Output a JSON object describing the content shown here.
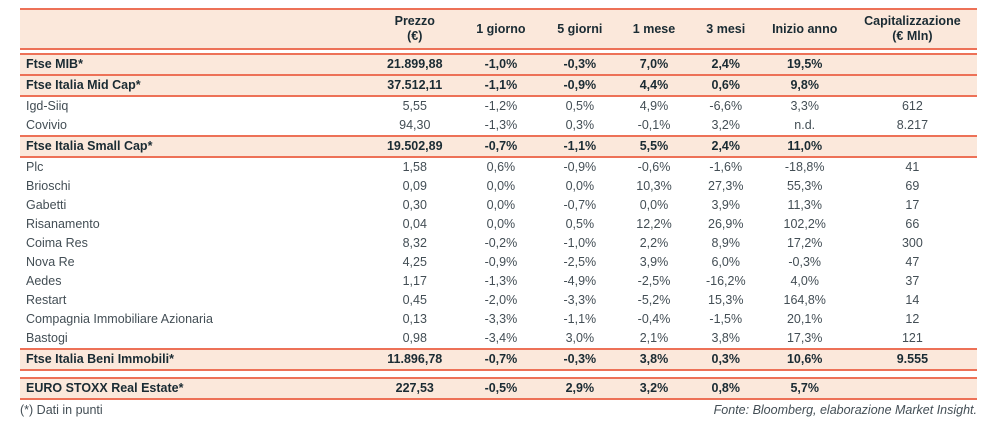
{
  "chart_data": {
    "type": "table",
    "columns": [
      "",
      "Prezzo\n(€)",
      "1 giorno",
      "5 giorni",
      "1 mese",
      "3 mesi",
      "Inizio anno",
      "Capitalizzazione\n(€ Mln)"
    ],
    "rows": [
      {
        "type": "index",
        "name": "Ftse MIB*",
        "cells": [
          "21.899,88",
          "-1,0%",
          "-0,3%",
          "7,0%",
          "2,4%",
          "19,5%",
          ""
        ]
      },
      {
        "type": "index",
        "name": "Ftse Italia Mid Cap*",
        "cells": [
          "37.512,11",
          "-1,1%",
          "-0,9%",
          "4,4%",
          "0,6%",
          "9,8%",
          ""
        ]
      },
      {
        "type": "stock",
        "name": "Igd-Siiq",
        "cells": [
          "5,55",
          "-1,2%",
          "0,5%",
          "4,9%",
          "-6,6%",
          "3,3%",
          "612"
        ]
      },
      {
        "type": "stock",
        "name": "Covivio",
        "cells": [
          "94,30",
          "-1,3%",
          "0,3%",
          "-0,1%",
          "3,2%",
          "n.d.",
          "8.217"
        ]
      },
      {
        "type": "index",
        "name": "Ftse Italia Small Cap*",
        "cells": [
          "19.502,89",
          "-0,7%",
          "-1,1%",
          "5,5%",
          "2,4%",
          "11,0%",
          ""
        ]
      },
      {
        "type": "stock",
        "name": "Plc",
        "cells": [
          "1,58",
          "0,6%",
          "-0,9%",
          "-0,6%",
          "-1,6%",
          "-18,8%",
          "41"
        ]
      },
      {
        "type": "stock",
        "name": "Brioschi",
        "cells": [
          "0,09",
          "0,0%",
          "0,0%",
          "10,3%",
          "27,3%",
          "55,3%",
          "69"
        ]
      },
      {
        "type": "stock",
        "name": "Gabetti",
        "cells": [
          "0,30",
          "0,0%",
          "-0,7%",
          "0,0%",
          "3,9%",
          "11,3%",
          "17"
        ]
      },
      {
        "type": "stock",
        "name": "Risanamento",
        "cells": [
          "0,04",
          "0,0%",
          "0,5%",
          "12,2%",
          "26,9%",
          "102,2%",
          "66"
        ]
      },
      {
        "type": "stock",
        "name": "Coima Res",
        "cells": [
          "8,32",
          "-0,2%",
          "-1,0%",
          "2,2%",
          "8,9%",
          "17,2%",
          "300"
        ]
      },
      {
        "type": "stock",
        "name": "Nova Re",
        "cells": [
          "4,25",
          "-0,9%",
          "-2,5%",
          "3,9%",
          "6,0%",
          "-0,3%",
          "47"
        ]
      },
      {
        "type": "stock",
        "name": "Aedes",
        "cells": [
          "1,17",
          "-1,3%",
          "-4,9%",
          "-2,5%",
          "-16,2%",
          "4,0%",
          "37"
        ]
      },
      {
        "type": "stock",
        "name": "Restart",
        "cells": [
          "0,45",
          "-2,0%",
          "-3,3%",
          "-5,2%",
          "15,3%",
          "164,8%",
          "14"
        ]
      },
      {
        "type": "stock",
        "name": "Compagnia Immobiliare Azionaria",
        "cells": [
          "0,13",
          "-3,3%",
          "-1,1%",
          "-0,4%",
          "-1,5%",
          "20,1%",
          "12"
        ]
      },
      {
        "type": "stock",
        "name": "Bastogi",
        "cells": [
          "0,98",
          "-3,4%",
          "3,0%",
          "2,1%",
          "3,8%",
          "17,3%",
          "121"
        ]
      },
      {
        "type": "index",
        "name": "Ftse Italia Beni Immobili*",
        "cells": [
          "11.896,78",
          "-0,7%",
          "-0,3%",
          "3,8%",
          "0,3%",
          "10,6%",
          "9.555"
        ]
      },
      {
        "type": "spacer"
      },
      {
        "type": "index",
        "name": "EURO STOXX Real Estate*",
        "cells": [
          "227,53",
          "-0,5%",
          "2,9%",
          "3,2%",
          "0,8%",
          "5,7%",
          ""
        ]
      }
    ]
  },
  "footer": {
    "note": "(*) Dati in punti",
    "source": "Fonte: Bloomberg, elaborazione Market Insight."
  },
  "theme": {
    "accent": "#ED7157",
    "highlight_bg": "#FBE8DB",
    "text_dark": "#1A2B33",
    "text_regular": "#434E55"
  }
}
